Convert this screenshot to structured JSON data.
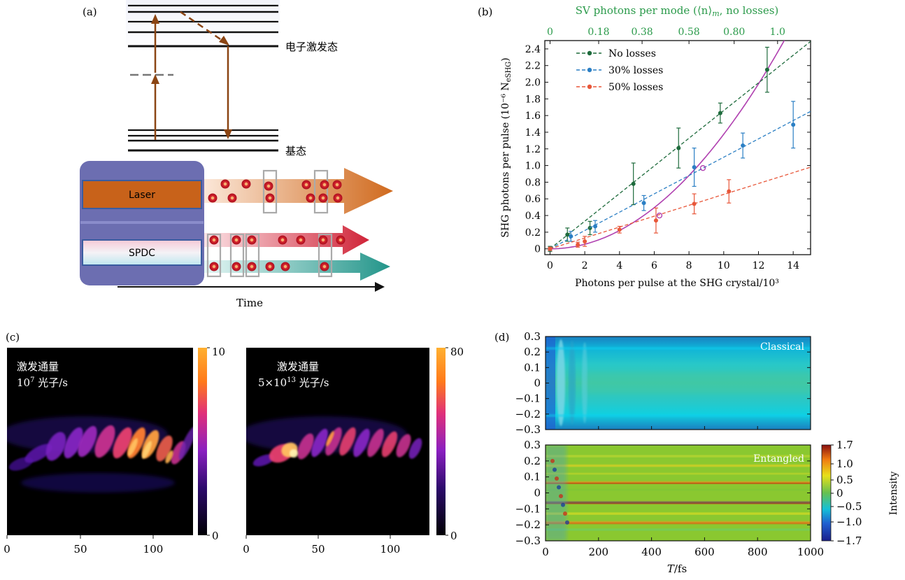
{
  "panel_labels": {
    "a": "(a)",
    "b": "(b)",
    "c": "(c)",
    "d": "(d)"
  },
  "panel_a": {
    "excited_label": "电子激发态",
    "ground_label": "基态",
    "laser_label": "Laser",
    "spdc_label": "SPDC",
    "time_label": "Time",
    "colors": {
      "laser": "#c8621a",
      "red_beam": "#d8283a",
      "teal_beam": "#2a9a8a",
      "box": "#6a6cb0"
    }
  },
  "chart_data": [
    {
      "id": "b",
      "type": "scatter",
      "title": "",
      "xlabel": "Photons per pulse at the SHG crystal/10³",
      "ylabel": "SHG photons per pulse (10⁻⁶ N",
      "ylabel_sub": "eSHG",
      "ylabel_tail": ")",
      "top_xlabel": "SV photons per mode (⟨n⟩",
      "top_xlabel_sub": "m",
      "top_xlabel_tail": ", no losses)",
      "xlim": [
        -0.3,
        15
      ],
      "ylim": [
        -0.07,
        2.5
      ],
      "xticks": [
        0,
        2,
        4,
        6,
        8,
        10,
        12,
        14
      ],
      "yticks": [
        0,
        0.2,
        0.4,
        0.6,
        0.8,
        1.0,
        1.2,
        1.4,
        1.6,
        1.8,
        2.0,
        2.2,
        2.4
      ],
      "ytick_labels": [
        "0",
        "0.2",
        "0.4",
        "0.6",
        "0.8",
        "1.0",
        "1.2",
        "1.4",
        "1.6",
        "1.8",
        "2.0",
        "2.2",
        "2.4"
      ],
      "top_ticks": [
        {
          "x": 0,
          "label": "0"
        },
        {
          "x": 2.8,
          "label": "0.18"
        },
        {
          "x": 5.3,
          "label": "0.38"
        },
        {
          "x": 8.0,
          "label": "0.58"
        },
        {
          "x": 10.6,
          "label": "0.80"
        },
        {
          "x": 13.1,
          "label": "1.0"
        }
      ],
      "top_color": "#2a9a4a",
      "legend_position": "top-left",
      "series": [
        {
          "name": "No losses",
          "color": "#1e6b3c",
          "points": [
            [
              0,
              0
            ],
            [
              1.0,
              0.17
            ],
            [
              2.3,
              0.25
            ],
            [
              4.8,
              0.78
            ],
            [
              7.4,
              1.21
            ],
            [
              9.8,
              1.63
            ],
            [
              12.5,
              2.15
            ]
          ],
          "errors": [
            0.03,
            0.08,
            0.08,
            0.25,
            0.24,
            0.12,
            0.27
          ],
          "fit": [
            [
              0,
              0
            ],
            [
              15,
              2.49
            ]
          ]
        },
        {
          "name": "30% losses",
          "color": "#2b7fc4",
          "points": [
            [
              0,
              0
            ],
            [
              1.2,
              0.15
            ],
            [
              2.6,
              0.27
            ],
            [
              5.4,
              0.55
            ],
            [
              8.3,
              0.98
            ],
            [
              11.1,
              1.24
            ],
            [
              14.0,
              1.49
            ]
          ],
          "errors": [
            0.02,
            0.06,
            0.07,
            0.09,
            0.23,
            0.15,
            0.28
          ],
          "fit": [
            [
              0,
              0
            ],
            [
              15,
              1.65
            ]
          ]
        },
        {
          "name": "50% losses",
          "color": "#e8573a",
          "points": [
            [
              0,
              0
            ],
            [
              1.6,
              0.05
            ],
            [
              2.0,
              0.09
            ],
            [
              4.0,
              0.23
            ],
            [
              6.1,
              0.34
            ],
            [
              8.3,
              0.54
            ],
            [
              10.3,
              0.69
            ]
          ],
          "errors": [
            0.02,
            0.03,
            0.06,
            0.04,
            0.15,
            0.12,
            0.14
          ],
          "fit": [
            [
              0,
              0
            ],
            [
              15,
              0.98
            ]
          ]
        }
      ],
      "quadratic_fit": {
        "color": "#b040b0",
        "coef": 0.01375
      },
      "open_markers": [
        {
          "x": 8.8,
          "y": 0.97,
          "color": "#b040b0"
        },
        {
          "x": 6.3,
          "y": 0.4,
          "color": "#b040b0"
        }
      ]
    },
    {
      "id": "c",
      "type": "heatmap",
      "images": [
        {
          "label_line1": "激发通量",
          "label_line2a": "10",
          "label_line2sup": "7",
          "label_line2b": " 光子/s",
          "cbar_max": "10",
          "cbar_min": "0"
        },
        {
          "label_line1": "激发通量",
          "label_line2a": "5×10",
          "label_line2sup": "13",
          "label_line2b": " 光子/s",
          "cbar_max": "80",
          "cbar_min": "0"
        }
      ],
      "xticks": [
        "0",
        "50",
        "100"
      ]
    },
    {
      "id": "d",
      "type": "heatmap",
      "panels": [
        {
          "label": "Classical"
        },
        {
          "label": "Entangled"
        }
      ],
      "yticks": [
        "0.3",
        "0.2",
        "0.1",
        "0",
        "−0.1",
        "−0.2",
        "−0.3"
      ],
      "xticks": [
        "0",
        "200",
        "400",
        "600",
        "800",
        "1000"
      ],
      "xlabel_var": "T",
      "xlabel_unit": "/fs",
      "colorbar": {
        "label": "Intensity",
        "ticks": [
          "1.7",
          "1.0",
          "0.5",
          "0",
          "−0.5",
          "−1.0",
          "−1.7"
        ]
      }
    }
  ]
}
